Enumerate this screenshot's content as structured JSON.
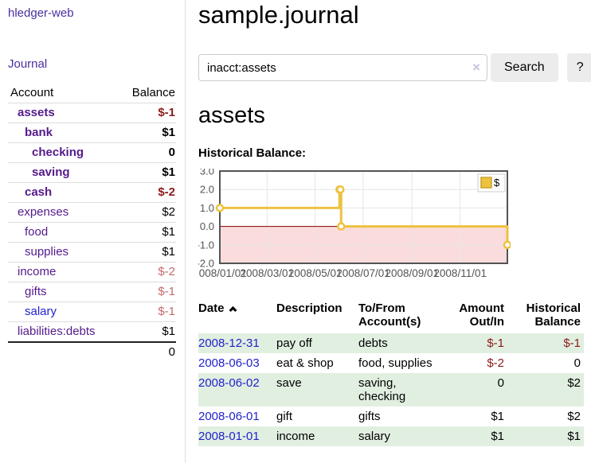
{
  "colors": {
    "brand_link": "#4a2f9f",
    "account_link_purple": "#551a8b",
    "link_blue": "#2222cc",
    "negative_strong": "#8b1b1b",
    "negative_dim": "#c46a6a",
    "row_stripe_green": "#e1efe1",
    "chart_series_gold": "#edc240",
    "chart_negative_region": "#fbdcdc",
    "chart_zero_line": "#800000",
    "chart_grid": "#e6e6e6",
    "chart_border": "#545454",
    "button_bg": "#ececec"
  },
  "sidebar": {
    "app_title": "hledger-web",
    "journal_link": "Journal",
    "accounts_table": {
      "headers": {
        "account": "Account",
        "balance": "Balance"
      },
      "rows": [
        {
          "name": "assets",
          "balance": "$-1",
          "level": 1,
          "bold": true,
          "name_color": "purple",
          "balance_color": "darkred"
        },
        {
          "name": "bank",
          "balance": "$1",
          "level": 2,
          "bold": true,
          "name_color": "purple",
          "balance_color": "black"
        },
        {
          "name": "checking",
          "balance": "0",
          "level": 3,
          "bold": true,
          "name_color": "purple",
          "balance_color": "black"
        },
        {
          "name": "saving",
          "balance": "$1",
          "level": 3,
          "bold": true,
          "name_color": "purple",
          "balance_color": "black"
        },
        {
          "name": "cash",
          "balance": "$-2",
          "level": 2,
          "bold": true,
          "name_color": "purple",
          "balance_color": "darkred"
        },
        {
          "name": "expenses",
          "balance": "$2",
          "level": 1,
          "bold": false,
          "name_color": "purple",
          "balance_color": "black"
        },
        {
          "name": "food",
          "balance": "$1",
          "level": 2,
          "bold": false,
          "name_color": "purple",
          "balance_color": "black"
        },
        {
          "name": "supplies",
          "balance": "$1",
          "level": 2,
          "bold": false,
          "name_color": "purple",
          "balance_color": "black"
        },
        {
          "name": "income",
          "balance": "$-2",
          "level": 1,
          "bold": false,
          "name_color": "purple",
          "balance_color": "dimred"
        },
        {
          "name": "gifts",
          "balance": "$-1",
          "level": 2,
          "bold": false,
          "name_color": "purple",
          "balance_color": "dimred"
        },
        {
          "name": "salary",
          "balance": "$-1",
          "level": 2,
          "bold": false,
          "name_color": "blue",
          "balance_color": "dimred"
        },
        {
          "name": "liabilities:debts",
          "balance": "$1",
          "level": 1,
          "bold": false,
          "name_color": "purple",
          "balance_color": "black"
        }
      ],
      "total": "0"
    }
  },
  "main": {
    "title": "sample.journal",
    "search": {
      "value": "inacct:assets",
      "clear_icon": "×",
      "search_button": "Search",
      "help_button": "?"
    },
    "account_heading": "assets",
    "chart_label": "Historical Balance:",
    "chart_data": {
      "type": "line",
      "title": "Historical Balance:",
      "step": true,
      "x": [
        "2008-01-01",
        "2008-06-01",
        "2008-06-02",
        "2008-06-03",
        "2008-12-31"
      ],
      "series": [
        {
          "name": "$",
          "values": [
            1,
            2,
            2,
            0,
            -1
          ],
          "color": "#edc240"
        }
      ],
      "xlim": [
        "2008-01-01",
        "2008-12-31"
      ],
      "ylim": [
        -2,
        3
      ],
      "x_tick_labels": [
        "2008/01/01",
        "2008/03/01",
        "2008/05/01",
        "2008/07/01",
        "2008/09/01",
        "2008/11/01"
      ],
      "y_tick_labels": [
        "3.0",
        "2.0",
        "1.0",
        "0.0",
        "-1.0",
        "-2.0"
      ],
      "grid": true,
      "legend_position": "top-right",
      "negative_region_color": "#fbdcdc",
      "zero_line_color": "#800000",
      "grid_color": "#e6e6e6",
      "border_color": "#545454",
      "tick_color": "#545454"
    },
    "register_table": {
      "headers": {
        "date": "Date",
        "description": "Description",
        "accounts": "To/From Account(s)",
        "amount": "Amount Out/In",
        "balance": "Historical Balance"
      },
      "rows": [
        {
          "date": "2008-12-31",
          "description": "pay off",
          "accounts": "debts",
          "amount": "$-1",
          "balance": "$-1",
          "amount_color": "darkred",
          "balance_color": "darkred"
        },
        {
          "date": "2008-06-03",
          "description": "eat & shop",
          "accounts": "food, supplies",
          "amount": "$-2",
          "balance": "0",
          "amount_color": "darkred",
          "balance_color": "black"
        },
        {
          "date": "2008-06-02",
          "description": "save",
          "accounts": "saving, checking",
          "amount": "0",
          "balance": "$2",
          "amount_color": "black",
          "balance_color": "black"
        },
        {
          "date": "2008-06-01",
          "description": "gift",
          "accounts": "gifts",
          "amount": "$1",
          "balance": "$2",
          "amount_color": "black",
          "balance_color": "black"
        },
        {
          "date": "2008-01-01",
          "description": "income",
          "accounts": "salary",
          "amount": "$1",
          "balance": "$1",
          "amount_color": "black",
          "balance_color": "black"
        }
      ]
    }
  }
}
